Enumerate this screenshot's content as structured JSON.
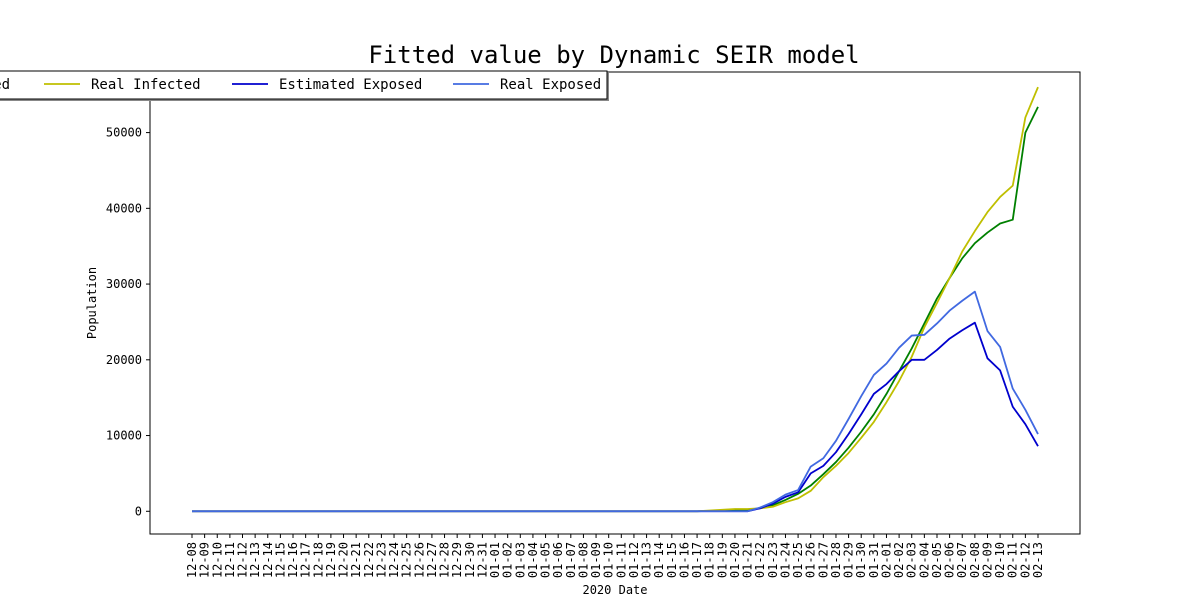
{
  "chart_data": {
    "type": "line",
    "title": "Fitted value by Dynamic SEIR model",
    "xlabel": "2020 Date",
    "ylabel": "Population",
    "ylim": [
      -3000,
      58000
    ],
    "yticks": [
      0,
      10000,
      20000,
      30000,
      40000,
      50000
    ],
    "grid": false,
    "legend_placement": "top-left",
    "categories": [
      "12-08",
      "12-09",
      "12-10",
      "12-11",
      "12-12",
      "12-13",
      "12-14",
      "12-15",
      "12-16",
      "12-17",
      "12-18",
      "12-19",
      "12-20",
      "12-21",
      "12-22",
      "12-23",
      "12-24",
      "12-25",
      "12-26",
      "12-27",
      "12-28",
      "12-29",
      "12-30",
      "12-31",
      "01-01",
      "01-02",
      "01-03",
      "01-04",
      "01-05",
      "01-06",
      "01-07",
      "01-08",
      "01-09",
      "01-10",
      "01-11",
      "01-12",
      "01-13",
      "01-14",
      "01-15",
      "01-16",
      "01-17",
      "01-18",
      "01-19",
      "01-20",
      "01-21",
      "01-22",
      "01-23",
      "01-24",
      "01-25",
      "01-26",
      "01-27",
      "01-28",
      "01-29",
      "01-30",
      "01-31",
      "02-01",
      "02-02",
      "02-03",
      "02-04",
      "02-05",
      "02-06",
      "02-07",
      "02-08",
      "02-09",
      "02-10",
      "02-11",
      "02-12",
      "02-13"
    ],
    "series": [
      {
        "name": "Estimated Infected",
        "legend_label": "ed",
        "color": "#008000",
        "values": [
          0,
          0,
          0,
          0,
          0,
          0,
          0,
          0,
          0,
          0,
          0,
          0,
          0,
          0,
          0,
          0,
          0,
          0,
          0,
          0,
          0,
          0,
          0,
          0,
          0,
          0,
          0,
          0,
          0,
          0,
          0,
          0,
          0,
          0,
          0,
          0,
          0,
          0,
          0,
          0,
          0,
          50,
          80,
          120,
          200,
          400,
          800,
          1500,
          2300,
          3400,
          4900,
          6500,
          8400,
          10500,
          12800,
          15500,
          18500,
          21500,
          24800,
          28100,
          30800,
          33400,
          35400,
          36800,
          38000,
          38500,
          50000,
          53400
        ]
      },
      {
        "name": "Real Infected",
        "legend_label": "Real Infected",
        "color": "#bfbf00",
        "values": [
          0,
          0,
          0,
          0,
          0,
          0,
          0,
          0,
          0,
          0,
          0,
          0,
          0,
          0,
          0,
          0,
          0,
          0,
          0,
          0,
          0,
          0,
          0,
          0,
          0,
          0,
          0,
          0,
          0,
          0,
          0,
          0,
          0,
          0,
          0,
          0,
          0,
          0,
          0,
          0,
          0,
          100,
          200,
          300,
          300,
          400,
          600,
          1200,
          1700,
          2700,
          4500,
          6000,
          7700,
          9700,
          11800,
          14400,
          17200,
          20400,
          24300,
          27500,
          30800,
          34300,
          37000,
          39500,
          41500,
          43000,
          52000,
          56000
        ]
      },
      {
        "name": "Estimated Exposed",
        "legend_label": "Estimated Exposed",
        "color": "#0000cd",
        "values": [
          0,
          0,
          0,
          0,
          0,
          0,
          0,
          0,
          0,
          0,
          0,
          0,
          0,
          0,
          0,
          0,
          0,
          0,
          0,
          0,
          0,
          0,
          0,
          0,
          0,
          0,
          0,
          0,
          0,
          0,
          0,
          0,
          0,
          0,
          0,
          0,
          0,
          0,
          0,
          0,
          0,
          0,
          0,
          0,
          0,
          400,
          1000,
          1900,
          2500,
          5000,
          6000,
          7800,
          10200,
          12800,
          15500,
          16800,
          18500,
          20000,
          20000,
          21300,
          22800,
          23900,
          24900,
          20200,
          18600,
          13800,
          11500,
          8600
        ]
      },
      {
        "name": "Real Exposed",
        "legend_label": "Real Exposed",
        "color": "#4169e1",
        "values": [
          0,
          0,
          0,
          0,
          0,
          0,
          0,
          0,
          0,
          0,
          0,
          0,
          0,
          0,
          0,
          0,
          0,
          0,
          0,
          0,
          0,
          0,
          0,
          0,
          0,
          0,
          0,
          0,
          0,
          0,
          0,
          0,
          0,
          0,
          0,
          0,
          0,
          0,
          0,
          0,
          0,
          0,
          0,
          0,
          0,
          500,
          1200,
          2200,
          2800,
          5900,
          7000,
          9300,
          12200,
          15200,
          18000,
          19500,
          21600,
          23200,
          23300,
          24800,
          26500,
          27800,
          29000,
          23800,
          21700,
          16200,
          13400,
          10200
        ]
      }
    ]
  }
}
